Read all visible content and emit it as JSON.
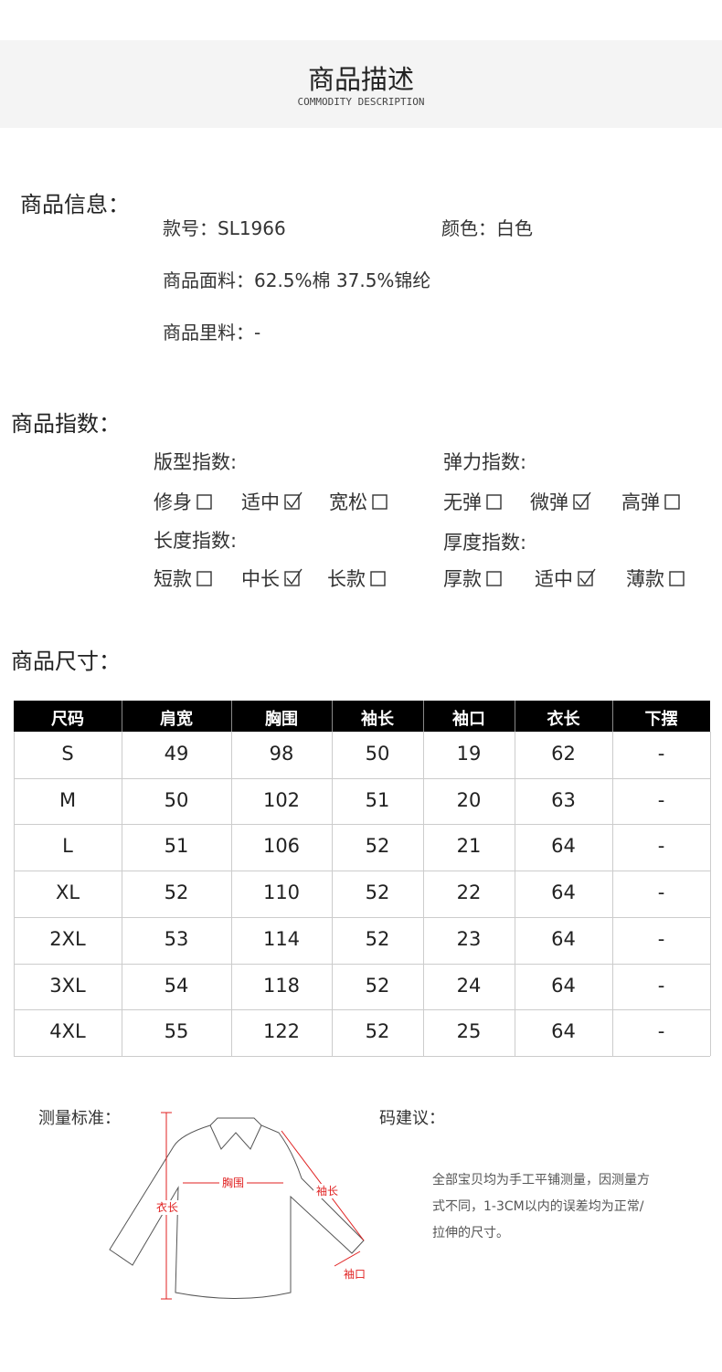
{
  "header": {
    "title": "商品描述",
    "subtitle": "COMMODITY DESCRIPTION"
  },
  "info": {
    "heading": "商品信息：",
    "items": [
      "款号：SL1966",
      "颜色：白色",
      "商品面料：62.5%棉 37.5%锦纶",
      "商品里料：-"
    ]
  },
  "index": {
    "heading": "商品指数：",
    "groups": [
      {
        "title": "版型指数:",
        "options": [
          {
            "label": "修身",
            "checked": false
          },
          {
            "label": "适中",
            "checked": true
          },
          {
            "label": "宽松",
            "checked": false
          }
        ]
      },
      {
        "title": "弹力指数:",
        "options": [
          {
            "label": "无弹",
            "checked": false
          },
          {
            "label": "微弹",
            "checked": true
          },
          {
            "label": "高弹",
            "checked": false
          }
        ]
      },
      {
        "title": "长度指数:",
        "options": [
          {
            "label": "短款",
            "checked": false
          },
          {
            "label": "中长",
            "checked": true
          },
          {
            "label": "长款",
            "checked": false
          }
        ]
      },
      {
        "title": "厚度指数:",
        "options": [
          {
            "label": "厚款",
            "checked": false
          },
          {
            "label": "适中",
            "checked": true
          },
          {
            "label": "薄款",
            "checked": false
          }
        ]
      }
    ]
  },
  "size": {
    "heading": "商品尺寸：",
    "table": {
      "header": [
        "尺码",
        "肩宽",
        "胸围",
        "袖长",
        "袖口",
        "衣长",
        "下摆"
      ],
      "rows": [
        [
          "S",
          49,
          98,
          50,
          19,
          62,
          "-"
        ],
        [
          "M",
          50,
          102,
          51,
          20,
          63,
          "-"
        ],
        [
          "L",
          51,
          106,
          52,
          21,
          64,
          "-"
        ],
        [
          "XL",
          52,
          110,
          52,
          22,
          64,
          "-"
        ],
        [
          "2XL",
          53,
          114,
          52,
          23,
          64,
          "-"
        ],
        [
          "3XL",
          54,
          118,
          52,
          24,
          64,
          "-"
        ],
        [
          "4XL",
          55,
          122,
          52,
          25,
          64,
          "-"
        ]
      ]
    }
  },
  "measure": {
    "heading": "测量标准：",
    "labels": {
      "chest": "胸围",
      "length": "衣长",
      "sleeve": "袖长",
      "cuff": "袖口"
    }
  },
  "advice": {
    "heading": "码建议：",
    "lines": [
      "全部宝贝均为手工平铺测量，因测量方",
      "式不同，1-3CM以内的误差均为正常/",
      "拉伸的尺寸。"
    ]
  }
}
